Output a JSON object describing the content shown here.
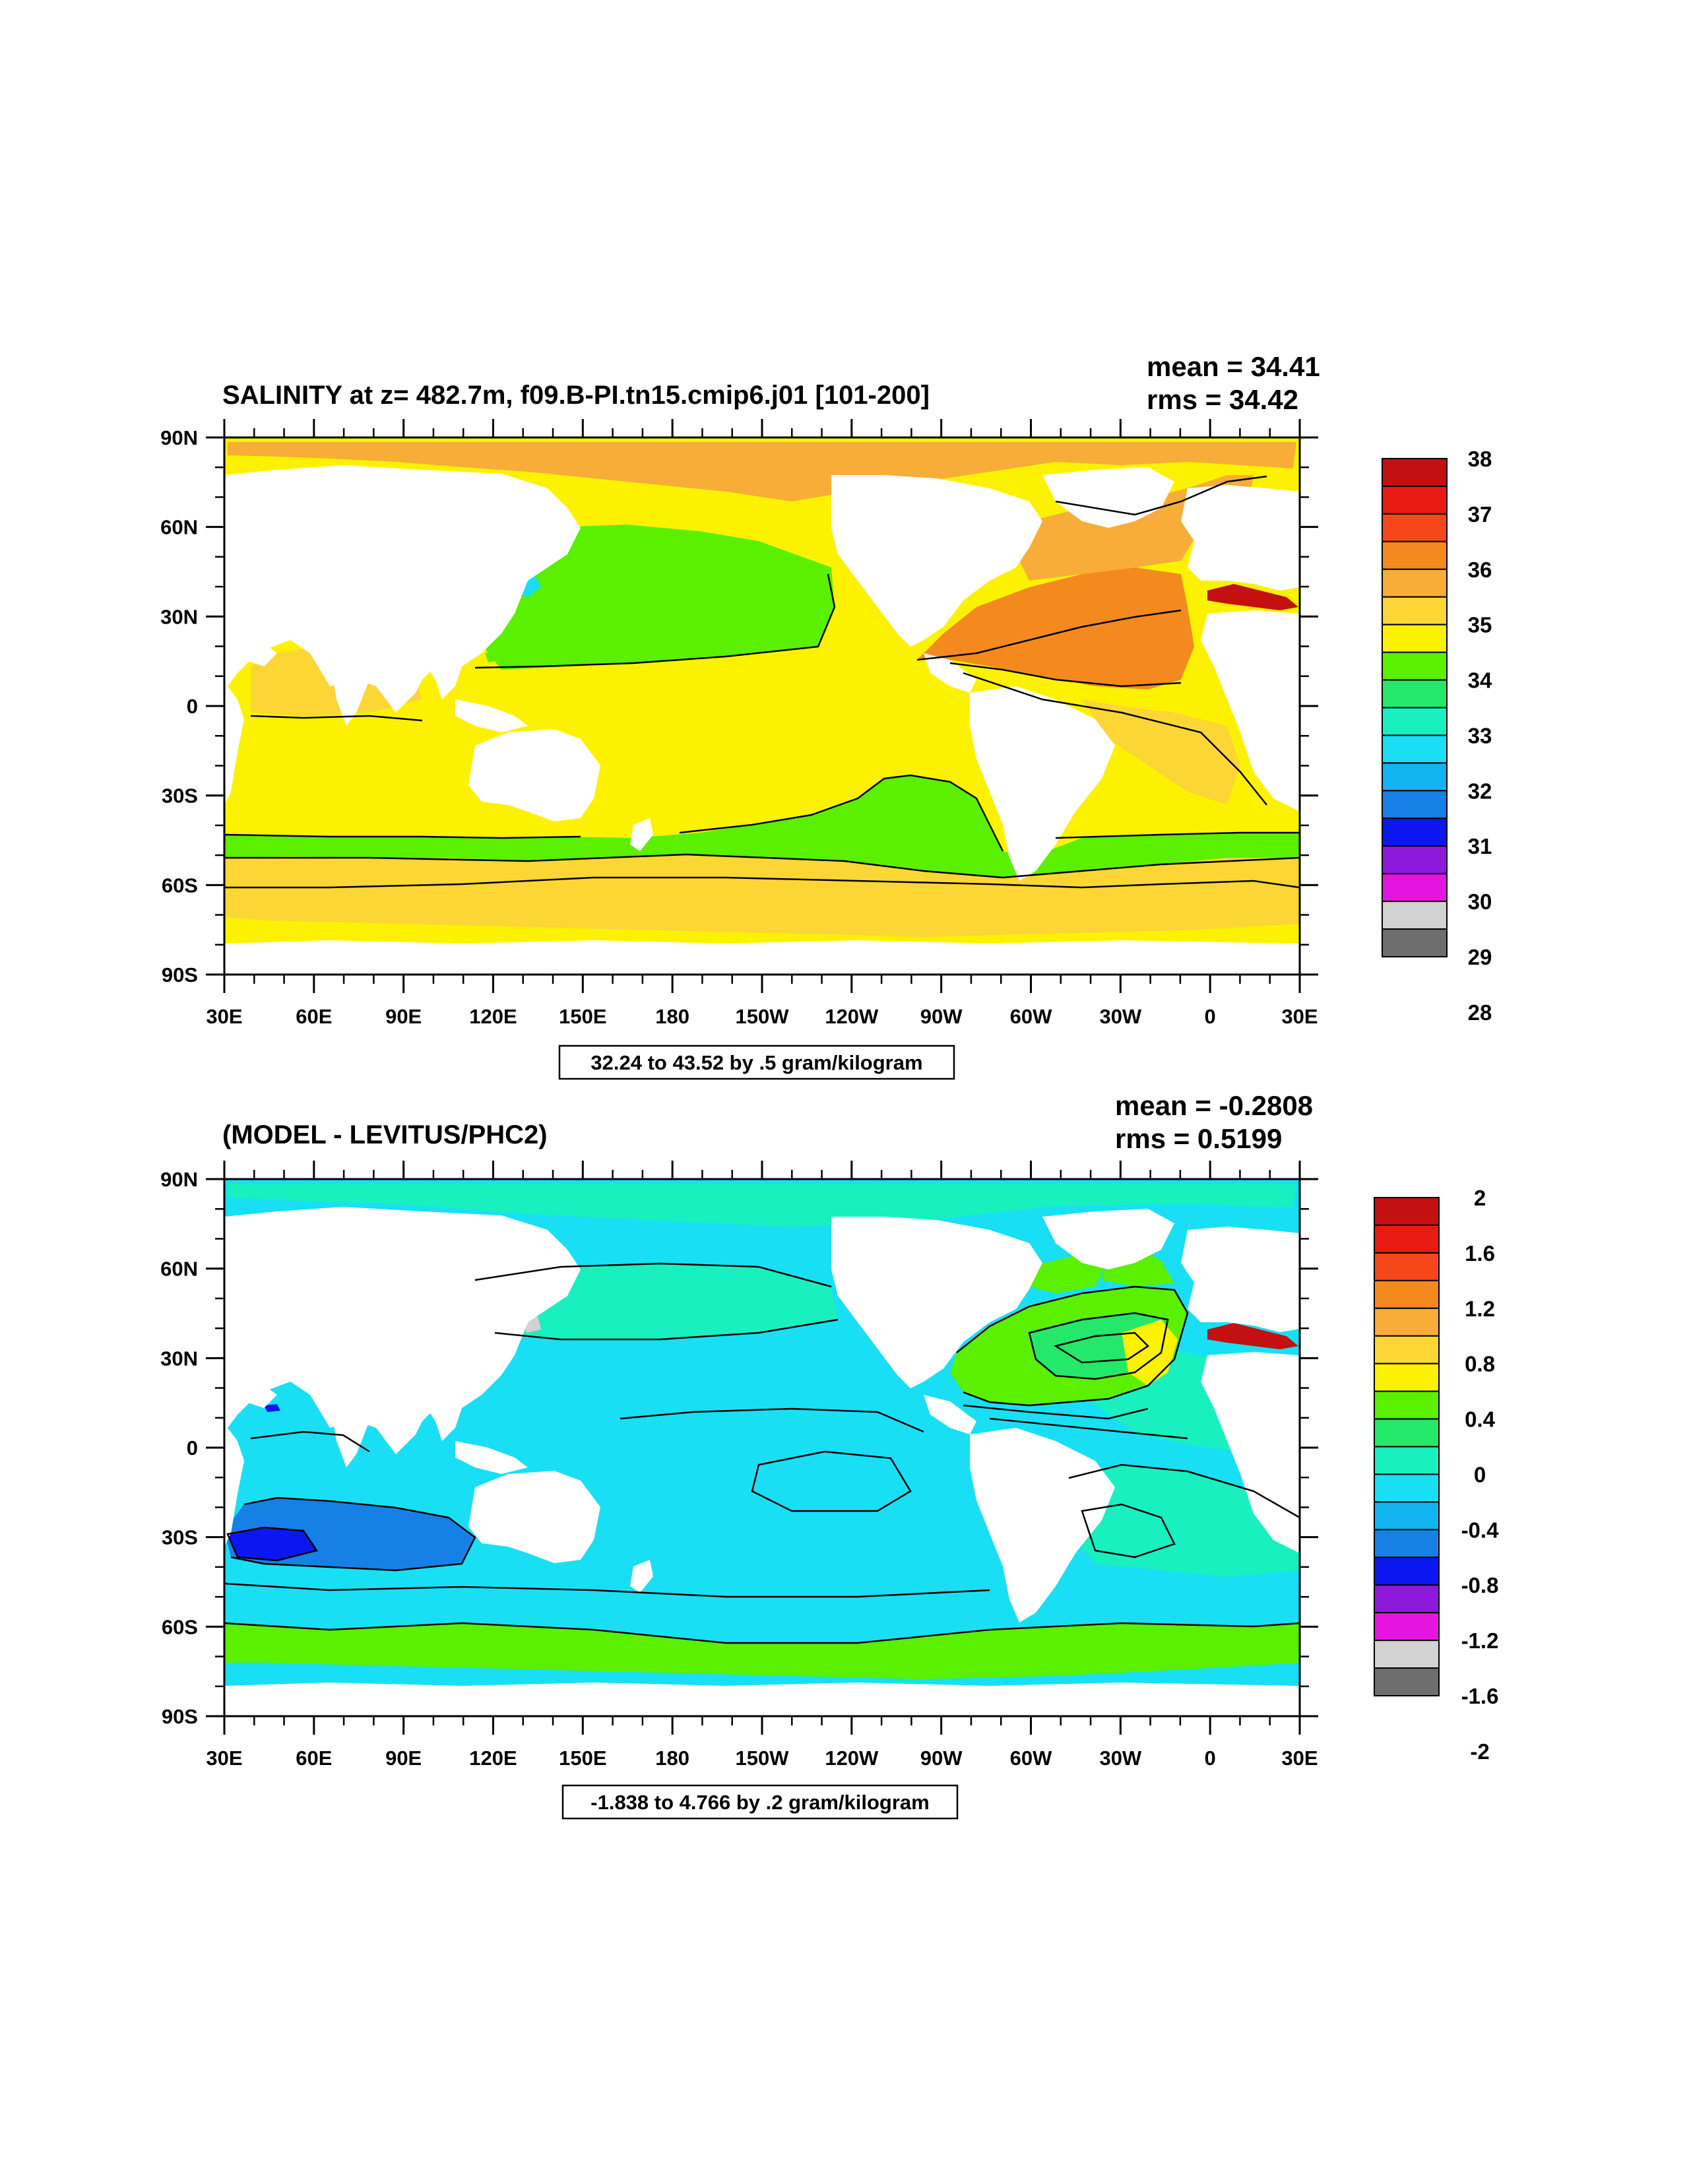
{
  "panels": [
    {
      "title": "SALINITY at z= 482.7m, f09.B-PI.tn15.cmip6.j01 [101-200]",
      "mean_label": "mean = 34.41",
      "rms_label": "rms = 34.42",
      "info_label": "32.24 to 43.52 by .5 gram/kilogram",
      "x_ticks": [
        "30E",
        "60E",
        "90E",
        "120E",
        "150E",
        "180",
        "150W",
        "120W",
        "90W",
        "60W",
        "30W",
        "0",
        "30E"
      ],
      "y_ticks": [
        "90N",
        "60N",
        "30N",
        "0",
        "30S",
        "60S",
        "90S"
      ],
      "colorbar": {
        "labels": [
          "38",
          "37",
          "36",
          "35",
          "34",
          "33",
          "32",
          "31",
          "30",
          "29",
          "28"
        ],
        "colors": [
          "#c41010",
          "#e81a12",
          "#f5471a",
          "#f48a1e",
          "#f7ad37",
          "#fbd635",
          "#fcf200",
          "#5af000",
          "#24e86a",
          "#18f0c0",
          "#19dff4",
          "#12b4f0",
          "#1680e6",
          "#0c16f0",
          "#8e18dc",
          "#e614e0",
          "#d2d2d2",
          "#6e6e6e"
        ]
      }
    },
    {
      "title": "(MODEL - LEVITUS/PHC2)",
      "mean_label": "mean = -0.2808",
      "rms_label": "rms = 0.5199",
      "info_label": "-1.838 to 4.766 by .2 gram/kilogram",
      "x_ticks": [
        "30E",
        "60E",
        "90E",
        "120E",
        "150E",
        "180",
        "150W",
        "120W",
        "90W",
        "60W",
        "30W",
        "0",
        "30E"
      ],
      "y_ticks": [
        "90N",
        "60N",
        "30N",
        "0",
        "30S",
        "60S",
        "90S"
      ],
      "colorbar": {
        "labels": [
          "2",
          "1.6",
          "1.2",
          "0.8",
          "0.4",
          "0",
          "-0.4",
          "-0.8",
          "-1.2",
          "-1.6",
          "-2"
        ],
        "colors": [
          "#c41010",
          "#e81a12",
          "#f5471a",
          "#f48a1e",
          "#f7ad37",
          "#fbd635",
          "#fcf200",
          "#5af000",
          "#24e86a",
          "#18f0c0",
          "#19dff4",
          "#12b4f0",
          "#1680e6",
          "#0c16f0",
          "#8e18dc",
          "#e614e0",
          "#d2d2d2",
          "#6e6e6e"
        ]
      }
    }
  ],
  "palette": {
    "land": "#ffffff",
    "p1_arctic": "#f7ad37",
    "p1_main": "#fcf200",
    "p1_north_pac": "#5af000",
    "p1_subtrop_atl": "#f48a1e",
    "p1_south_ring": "#fbd635",
    "p1_med": "#c41010",
    "p2_main": "#19dff4",
    "p2_mid": "#18f0c0",
    "p2_south": "#5af000",
    "p2_deep": "#1680e6",
    "p2_darkest": "#0c16f0",
    "p2_warm": "#fcf200"
  }
}
